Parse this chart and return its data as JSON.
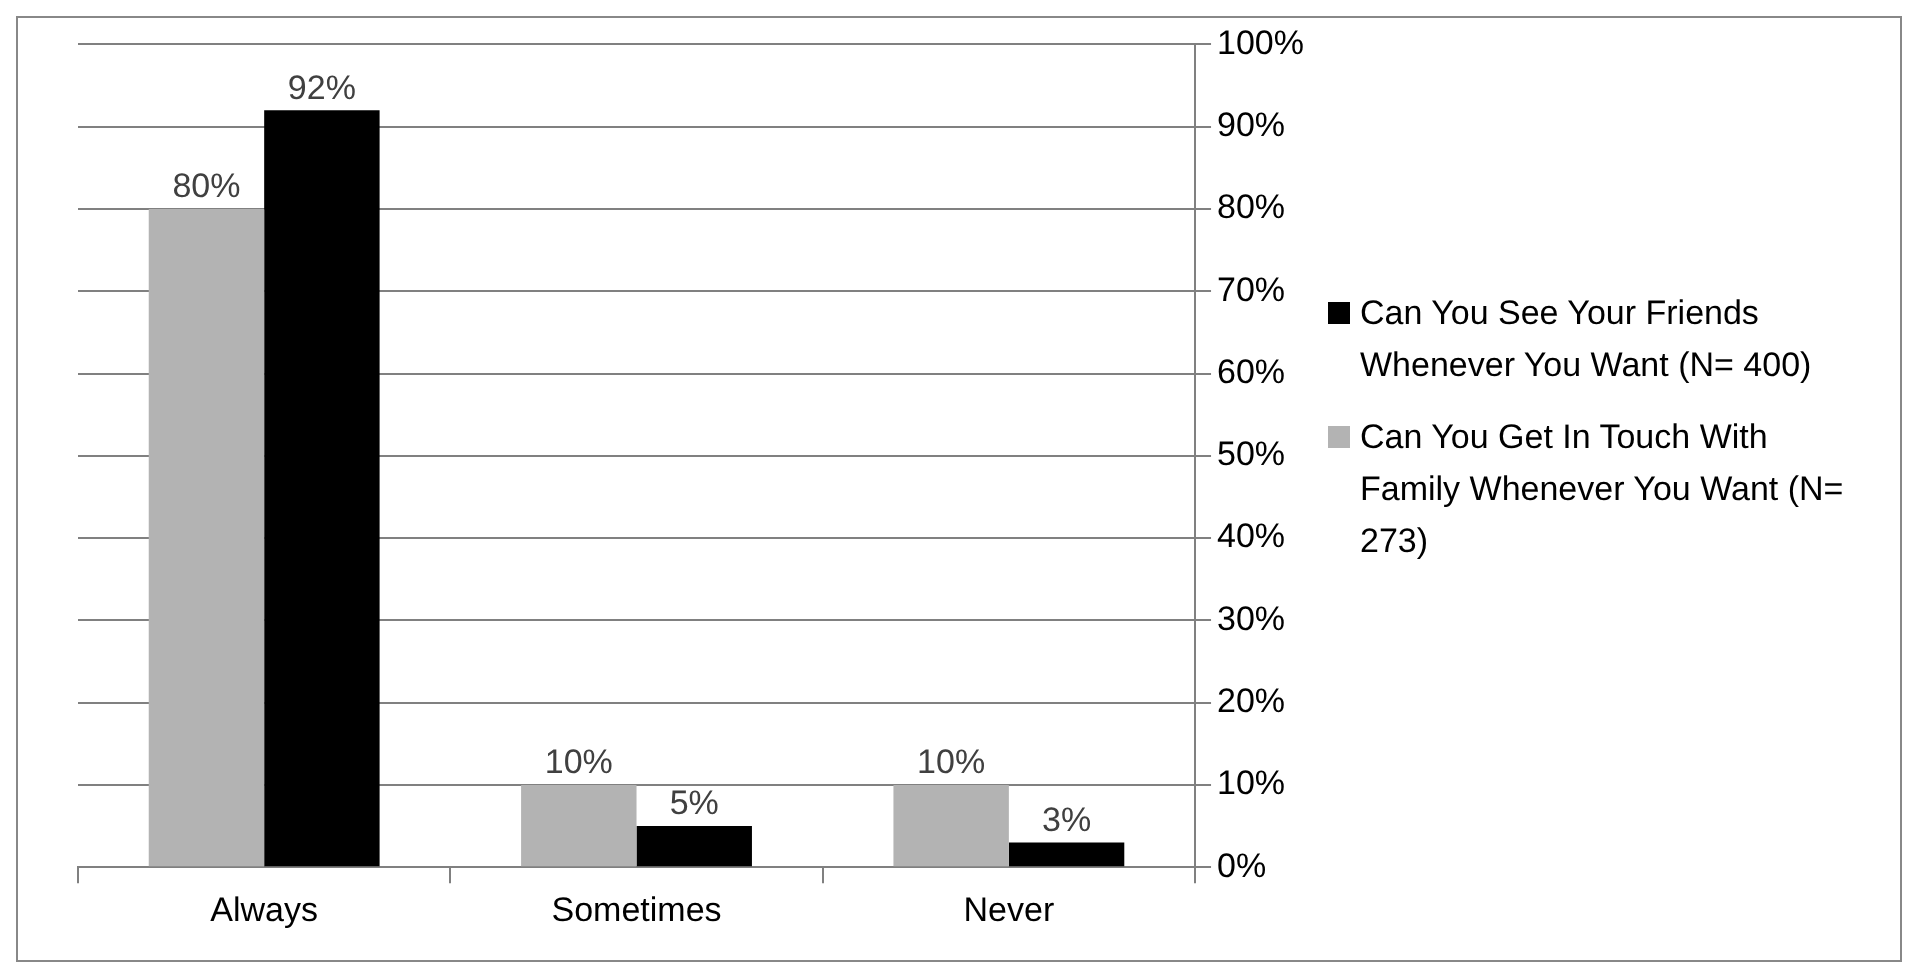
{
  "chart_data": {
    "type": "bar",
    "categories": [
      "Always",
      "Sometimes",
      "Never"
    ],
    "series": [
      {
        "name": "Can You Get In Touch With Family Whenever You Want (N= 273)",
        "color": "#b3b3b3",
        "values": [
          80,
          10,
          10
        ],
        "value_labels": [
          "80%",
          "10%",
          "10%"
        ]
      },
      {
        "name": "Can You See Your Friends Whenever You Want (N= 400)",
        "color": "#000000",
        "values": [
          92,
          5,
          3
        ],
        "value_labels": [
          "92%",
          "5%",
          "3%"
        ]
      }
    ],
    "ylim": [
      0,
      100
    ],
    "yticks": [
      {
        "value": 0,
        "label": "0%"
      },
      {
        "value": 10,
        "label": "10%"
      },
      {
        "value": 20,
        "label": "20%"
      },
      {
        "value": 30,
        "label": "30%"
      },
      {
        "value": 40,
        "label": "40%"
      },
      {
        "value": 50,
        "label": "50%"
      },
      {
        "value": 60,
        "label": "60%"
      },
      {
        "value": 70,
        "label": "70%"
      },
      {
        "value": 80,
        "label": "80%"
      },
      {
        "value": 90,
        "label": "90%"
      },
      {
        "value": 100,
        "label": "100%"
      }
    ],
    "grid": "y",
    "legend": "right"
  }
}
